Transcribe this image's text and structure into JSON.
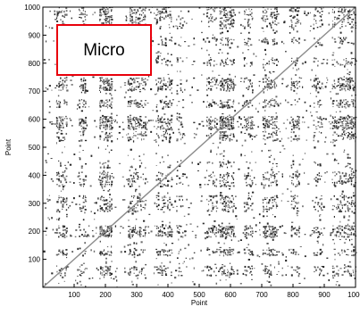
{
  "chart_data": {
    "type": "heatmap",
    "kind": "recurrence-plot",
    "title": "",
    "xlabel": "Point",
    "ylabel": "Point",
    "xlim": [
      0,
      1000
    ],
    "ylim": [
      0,
      1000
    ],
    "x_ticks": [
      "100",
      "200",
      "300",
      "400",
      "500",
      "600",
      "700",
      "800",
      "900",
      "1000"
    ],
    "y_ticks": [
      "100",
      "200",
      "300",
      "400",
      "500",
      "600",
      "700",
      "800",
      "900",
      "1000"
    ],
    "grid": false,
    "symmetric": true,
    "main_diagonal": true,
    "dense_bands": [
      {
        "start": 40,
        "end": 75,
        "density": 0.55
      },
      {
        "start": 110,
        "end": 135,
        "density": 0.6
      },
      {
        "start": 180,
        "end": 220,
        "density": 0.85
      },
      {
        "start": 265,
        "end": 300,
        "density": 0.6
      },
      {
        "start": 300,
        "end": 330,
        "density": 0.5
      },
      {
        "start": 360,
        "end": 410,
        "density": 0.55
      },
      {
        "start": 425,
        "end": 445,
        "density": 0.35
      },
      {
        "start": 520,
        "end": 555,
        "density": 0.5
      },
      {
        "start": 560,
        "end": 610,
        "density": 0.9
      },
      {
        "start": 640,
        "end": 670,
        "density": 0.6
      },
      {
        "start": 700,
        "end": 750,
        "density": 0.7
      },
      {
        "start": 790,
        "end": 820,
        "density": 0.5
      },
      {
        "start": 860,
        "end": 890,
        "density": 0.45
      },
      {
        "start": 920,
        "end": 945,
        "density": 0.5
      },
      {
        "start": 945,
        "end": 1000,
        "density": 0.65
      }
    ],
    "colors": {
      "point": "#2b2b2b",
      "diagonal": "#8c8c8c",
      "axes": "#000000"
    },
    "annotation": {
      "label": "Micro",
      "border_color": "#e8000b"
    }
  }
}
